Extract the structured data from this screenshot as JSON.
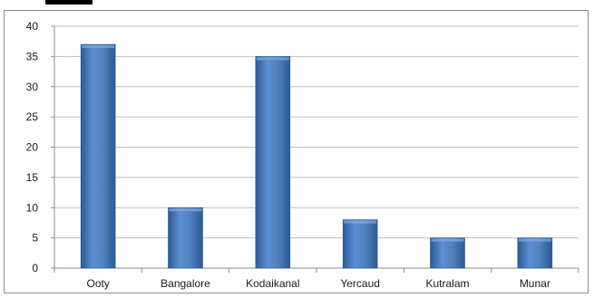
{
  "chart_data": {
    "type": "bar",
    "categories": [
      "Ooty",
      "Bangalore",
      "Kodaikanal",
      "Yercaud",
      "Kutralam",
      "Munar"
    ],
    "values": [
      37,
      10,
      35,
      8,
      5,
      5
    ],
    "title": "",
    "xlabel": "",
    "ylabel": "",
    "ylim": [
      0,
      40
    ],
    "yticks": [
      0,
      5,
      10,
      15,
      20,
      25,
      30,
      35,
      40
    ],
    "grid": true,
    "legend": "none",
    "colors": {
      "bar": "#4f81bd",
      "bar_dark": "#2c5a94",
      "bar_light": "#7ea6dc",
      "grid": "#bfbfbf",
      "axis": "#8c8c8c"
    }
  }
}
